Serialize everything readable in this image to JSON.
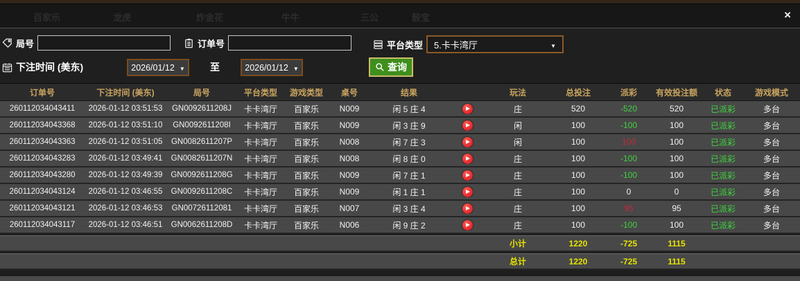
{
  "window": {
    "close_label": "×"
  },
  "background_tabs": [
    "百家乐",
    "龙虎",
    "炸金花",
    "牛牛",
    "三公",
    "骰宝"
  ],
  "filters": {
    "game_no": {
      "label": "局号",
      "value": ""
    },
    "order_no": {
      "label": "订单号",
      "value": ""
    },
    "platform": {
      "label": "平台类型",
      "selected": "5.卡卡湾厅"
    },
    "bet_time": {
      "label": "下注时间 (美东)",
      "from": "2026/01/12",
      "to_label": "至",
      "to": "2026/01/12"
    },
    "query_label": "查询"
  },
  "table": {
    "headers": [
      "订单号",
      "下注时间 (美东)",
      "局号",
      "平台类型",
      "游戏类型",
      "桌号",
      "结果",
      "",
      "玩法",
      "总投注",
      "派彩",
      "有效投注额",
      "状态",
      "游戏模式"
    ],
    "rows": [
      {
        "order_no": "260112034043411",
        "bet_time": "2026-01-12 03:51:53",
        "game_no": "GN0092611208J",
        "platform": "卡卡湾厅",
        "game_type": "百家乐",
        "table_no": "N009",
        "result": "闲 5 庄 4",
        "play": "庄",
        "total_bet": "520",
        "payout": "-520",
        "payout_color": "green",
        "valid_bet": "520",
        "status": "已派彩",
        "mode": "多台"
      },
      {
        "order_no": "260112034043368",
        "bet_time": "2026-01-12 03:51:10",
        "game_no": "GN0092611208I",
        "platform": "卡卡湾厅",
        "game_type": "百家乐",
        "table_no": "N009",
        "result": "闲 3 庄 9",
        "play": "闲",
        "total_bet": "100",
        "payout": "-100",
        "payout_color": "green",
        "valid_bet": "100",
        "status": "已派彩",
        "mode": "多台"
      },
      {
        "order_no": "260112034043363",
        "bet_time": "2026-01-12 03:51:05",
        "game_no": "GN0082611207P",
        "platform": "卡卡湾厅",
        "game_type": "百家乐",
        "table_no": "N008",
        "result": "闲 7 庄 3",
        "play": "闲",
        "total_bet": "100",
        "payout": "100",
        "payout_color": "red",
        "valid_bet": "100",
        "status": "已派彩",
        "mode": "多台"
      },
      {
        "order_no": "260112034043283",
        "bet_time": "2026-01-12 03:49:41",
        "game_no": "GN0082611207N",
        "platform": "卡卡湾厅",
        "game_type": "百家乐",
        "table_no": "N008",
        "result": "闲 8 庄 0",
        "play": "庄",
        "total_bet": "100",
        "payout": "-100",
        "payout_color": "green",
        "valid_bet": "100",
        "status": "已派彩",
        "mode": "多台"
      },
      {
        "order_no": "260112034043280",
        "bet_time": "2026-01-12 03:49:39",
        "game_no": "GN0092611208G",
        "platform": "卡卡湾厅",
        "game_type": "百家乐",
        "table_no": "N009",
        "result": "闲 7 庄 1",
        "play": "庄",
        "total_bet": "100",
        "payout": "-100",
        "payout_color": "green",
        "valid_bet": "100",
        "status": "已派彩",
        "mode": "多台"
      },
      {
        "order_no": "260112034043124",
        "bet_time": "2026-01-12 03:46:55",
        "game_no": "GN0092611208C",
        "platform": "卡卡湾厅",
        "game_type": "百家乐",
        "table_no": "N009",
        "result": "闲 1 庄 1",
        "play": "庄",
        "total_bet": "100",
        "payout": "0",
        "payout_color": "neutral",
        "valid_bet": "0",
        "status": "已派彩",
        "mode": "多台"
      },
      {
        "order_no": "260112034043121",
        "bet_time": "2026-01-12 03:46:53",
        "game_no": "GN00726112081",
        "platform": "卡卡湾厅",
        "game_type": "百家乐",
        "table_no": "N007",
        "result": "闲 3 庄 4",
        "play": "庄",
        "total_bet": "100",
        "payout": "95",
        "payout_color": "red",
        "valid_bet": "95",
        "status": "已派彩",
        "mode": "多台"
      },
      {
        "order_no": "260112034043117",
        "bet_time": "2026-01-12 03:46:51",
        "game_no": "GN0062611208D",
        "platform": "卡卡湾厅",
        "game_type": "百家乐",
        "table_no": "N006",
        "result": "闲 9 庄 2",
        "play": "庄",
        "total_bet": "100",
        "payout": "-100",
        "payout_color": "green",
        "valid_bet": "100",
        "status": "已派彩",
        "mode": "多台"
      }
    ],
    "subtotal": {
      "label": "小计",
      "total_bet": "1220",
      "payout": "-725",
      "valid_bet": "1115"
    },
    "total": {
      "label": "总计",
      "total_bet": "1220",
      "payout": "-725",
      "valid_bet": "1115"
    }
  },
  "colors": {
    "header_text": "#c9a45f",
    "win_green": "#3fd43f",
    "lose_red": "#c5293a",
    "total_yellow": "#e6e300",
    "query_button_bg": "#3f8f1d",
    "query_button_border": "#cabc6a",
    "date_border": "#7a4c1e",
    "select_border": "#8a5a28",
    "row_bg": "#484848"
  }
}
